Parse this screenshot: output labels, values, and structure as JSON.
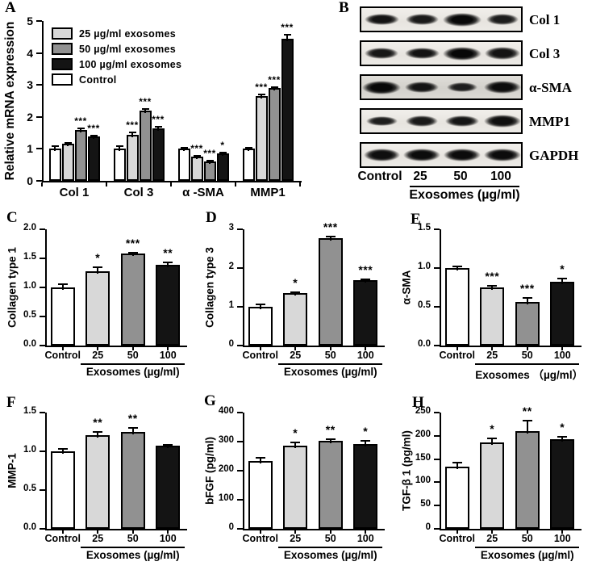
{
  "colors": {
    "control": "#ffffff",
    "c25": "#d8d8d8",
    "c50": "#919191",
    "c100": "#141414",
    "axis": "#000000"
  },
  "chart_data": [
    {
      "panel": "A",
      "type": "bar",
      "grouped": true,
      "ylabel": "Relative mRNA expression",
      "ylim": [
        0,
        5
      ],
      "yticks": [
        "0",
        "1",
        "2",
        "3",
        "4",
        "5"
      ],
      "categories": [
        "Col 1",
        "Col 3",
        "α -SMA",
        "MMP1"
      ],
      "series": [
        {
          "name": "Control",
          "color_key": "control",
          "values": [
            1.0,
            1.0,
            1.0,
            1.0
          ],
          "errors": [
            0.08,
            0.08,
            0.04,
            0.03
          ],
          "sig": [
            "",
            "",
            "",
            ""
          ]
        },
        {
          "name": "25 µg/ml exosomes",
          "color_key": "c25",
          "values": [
            1.15,
            1.45,
            0.75,
            2.65
          ],
          "errors": [
            0.04,
            0.06,
            0.03,
            0.06
          ],
          "sig": [
            "",
            "***",
            "***",
            "***"
          ]
        },
        {
          "name": "50 µg/ml exosomes",
          "color_key": "c50",
          "values": [
            1.6,
            2.2,
            0.6,
            2.9
          ],
          "errors": [
            0.04,
            0.05,
            0.04,
            0.04
          ],
          "sig": [
            "***",
            "***",
            "***",
            "***"
          ]
        },
        {
          "name": "100 µg/ml exosomes",
          "color_key": "c100",
          "values": [
            1.38,
            1.65,
            0.85,
            4.45
          ],
          "errors": [
            0.03,
            0.05,
            0.03,
            0.12
          ],
          "sig": [
            "***",
            "***",
            "*",
            "***"
          ]
        }
      ],
      "legend": [
        {
          "label": "25 µg/ml exosomes",
          "color_key": "c25"
        },
        {
          "label": "50 µg/ml exosomes",
          "color_key": "c50"
        },
        {
          "label": "100 µg/ml exosomes",
          "color_key": "c100"
        },
        {
          "label": "Control",
          "color_key": "control"
        }
      ]
    },
    {
      "panel": "C",
      "type": "bar",
      "ylabel": "Collagen type 1",
      "ylim": [
        0,
        2
      ],
      "yticks": [
        "0.0",
        "0.5",
        "1.0",
        "1.5",
        "2.0"
      ],
      "categories": [
        "Control",
        "25",
        "50",
        "100"
      ],
      "bar_color_keys": [
        "control",
        "c25",
        "c50",
        "c100"
      ],
      "values": [
        1.0,
        1.28,
        1.58,
        1.39
      ],
      "errors": [
        0.05,
        0.07,
        0.02,
        0.04
      ],
      "sig": [
        "",
        "*",
        "***",
        "**"
      ],
      "xlabel": "Exosomes (µg/ml)"
    },
    {
      "panel": "D",
      "type": "bar",
      "ylabel": "Collagen type 3",
      "ylim": [
        0,
        3
      ],
      "yticks": [
        "0",
        "1",
        "2",
        "3"
      ],
      "categories": [
        "Control",
        "25",
        "50",
        "100"
      ],
      "bar_color_keys": [
        "control",
        "c25",
        "c50",
        "c100"
      ],
      "values": [
        1.0,
        1.35,
        2.78,
        1.68
      ],
      "errors": [
        0.06,
        0.03,
        0.04,
        0.03
      ],
      "sig": [
        "",
        "*",
        "***",
        "***"
      ],
      "xlabel": "Exosomes (µg/ml)"
    },
    {
      "panel": "E",
      "type": "bar",
      "ylabel": "α-SMA",
      "ylim": [
        0,
        1.5
      ],
      "yticks": [
        "0.0",
        "0.5",
        "1.0",
        "1.5"
      ],
      "categories": [
        "Control",
        "25",
        "50",
        "100"
      ],
      "bar_color_keys": [
        "control",
        "c25",
        "c50",
        "c100"
      ],
      "values": [
        1.0,
        0.75,
        0.56,
        0.82
      ],
      "errors": [
        0.02,
        0.02,
        0.05,
        0.04
      ],
      "sig": [
        "",
        "***",
        "***",
        "*"
      ],
      "xlabel": "Exosomes （µg/ml）"
    },
    {
      "panel": "F",
      "type": "bar",
      "ylabel": "MMP-1",
      "ylim": [
        0,
        1.5
      ],
      "yticks": [
        "0.0",
        "0.5",
        "1.0",
        "1.5"
      ],
      "categories": [
        "Control",
        "25",
        "50",
        "100"
      ],
      "bar_color_keys": [
        "control",
        "c25",
        "c50",
        "c100"
      ],
      "values": [
        1.0,
        1.21,
        1.25,
        1.07
      ],
      "errors": [
        0.03,
        0.04,
        0.05,
        0.015
      ],
      "sig": [
        "",
        "**",
        "**",
        ""
      ],
      "xlabel": "Exosomes (µg/ml)"
    },
    {
      "panel": "G",
      "type": "bar",
      "ylabel": "bFGF  (pg/ml)",
      "ylim": [
        0,
        400
      ],
      "yticks": [
        "0",
        "100",
        "200",
        "300",
        "400"
      ],
      "categories": [
        "Control",
        "25",
        "50",
        "100"
      ],
      "bar_color_keys": [
        "control",
        "c25",
        "c50",
        "c100"
      ],
      "values": [
        232,
        285,
        302,
        293
      ],
      "errors": [
        13,
        12,
        7,
        9
      ],
      "sig": [
        "",
        "*",
        "**",
        "*"
      ],
      "xlabel": "Exosomes (µg/ml)"
    },
    {
      "panel": "H",
      "type": "bar",
      "ylabel": "TGF-β 1  (pg/ml)",
      "ylim": [
        0,
        250
      ],
      "yticks": [
        "0",
        "50",
        "100",
        "150",
        "200",
        "250"
      ],
      "categories": [
        "Control",
        "25",
        "50",
        "100"
      ],
      "bar_color_keys": [
        "control",
        "c25",
        "c50",
        "c100"
      ],
      "values": [
        133,
        185,
        210,
        192
      ],
      "errors": [
        9,
        10,
        22,
        6
      ],
      "sig": [
        "",
        "*",
        "**",
        "*"
      ],
      "xlabel": "Exosomes (µg/ml)"
    }
  ],
  "blots": {
    "panel": "B",
    "rows": [
      {
        "label": "Col 1",
        "intensities": [
          0.75,
          0.65,
          1.0,
          0.6
        ]
      },
      {
        "label": "Col 3",
        "intensities": [
          0.7,
          0.75,
          1.0,
          0.78
        ]
      },
      {
        "label": "α-SMA",
        "intensities": [
          1.0,
          0.72,
          0.5,
          0.9
        ],
        "noisy": true
      },
      {
        "label": "MMP1",
        "intensities": [
          0.55,
          0.62,
          0.72,
          0.88
        ]
      },
      {
        "label": "GAPDH",
        "intensities": [
          0.85,
          0.9,
          0.9,
          0.9
        ]
      }
    ],
    "lanes": [
      "Control",
      "25",
      "50",
      "100"
    ],
    "xlabel": "Exosomes (µg/ml)"
  }
}
